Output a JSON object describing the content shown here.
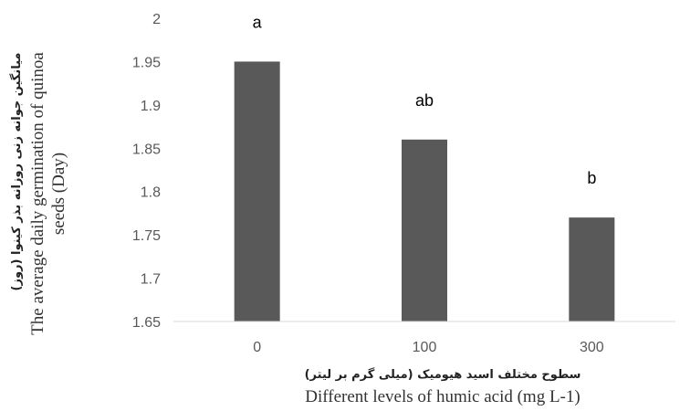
{
  "chart_data": {
    "type": "bar",
    "categories": [
      "0",
      "100",
      "300"
    ],
    "values": [
      1.95,
      1.86,
      1.77
    ],
    "significance_letters": [
      "a",
      "ab",
      "b"
    ],
    "ylim": [
      1.65,
      2.0
    ],
    "yticks": [
      "1.65",
      "1.7",
      "1.75",
      "1.8",
      "1.85",
      "1.9",
      "1.95",
      "2"
    ],
    "xlabel_fa": "سطوح مختلف اسید هیومیک (میلی گرم بر لیتر)",
    "xlabel_en": "Different levels of humic acid (mg L-1)",
    "ylabel_fa": "میانگین جوانه زنی روزانه بذر کینوا (روز)",
    "ylabel_en_line1": "The average daily germination of quinoa",
    "ylabel_en_line2": "seeds (Day)",
    "bar_color": "#595959",
    "grid": false
  }
}
